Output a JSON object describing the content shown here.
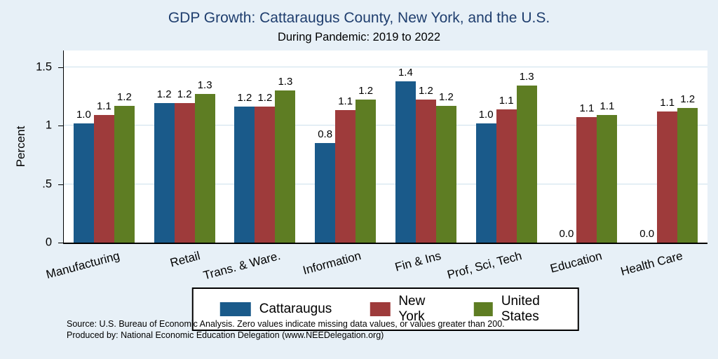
{
  "title": "GDP Growth: Cattaraugus County, New York, and the U.S.",
  "subtitle": "During Pandemic: 2019 to 2022",
  "ylabel": "Percent",
  "source": {
    "line1": "Source: U.S. Bureau of Economic Analysis. Zero values indicate missing data values, or values greater than 200.",
    "line2": "Produced by: National Economic Education Delegation (www.NEEDelegation.org)"
  },
  "style": {
    "background": "#E7F0F7",
    "plot_background": "#FFFFFF",
    "grid_color": "#CDE0EC",
    "title_color": "#1F3E6E"
  },
  "chart_data": {
    "type": "bar",
    "title": "GDP Growth: Cattaraugus County, New York, and the U.S.",
    "subtitle": "During Pandemic: 2019 to 2022",
    "xlabel": "",
    "ylabel": "Percent",
    "ylim": [
      0,
      1.65
    ],
    "yticks": [
      0,
      0.5,
      1,
      1.5
    ],
    "ytick_labels": [
      "0",
      ".5",
      "1",
      "1.5"
    ],
    "grid": true,
    "legend_position": "bottom",
    "categories": [
      "Manufacturing",
      "Retail",
      "Trans. & Ware.",
      "Information",
      "Fin & Ins",
      "Prof, Sci, Tech",
      "Education",
      "Health Care"
    ],
    "series": [
      {
        "name": "Cattaraugus",
        "color": "#1A5A8A",
        "values": [
          1.02,
          1.19,
          1.16,
          0.85,
          1.38,
          1.02,
          0.0,
          0.0
        ],
        "labels": [
          "1.0",
          "1.2",
          "1.2",
          "0.8",
          "1.4",
          "1.0",
          "0.0",
          "0.0"
        ]
      },
      {
        "name": "New York",
        "color": "#9E3B3B",
        "values": [
          1.09,
          1.19,
          1.16,
          1.13,
          1.22,
          1.14,
          1.07,
          1.12
        ],
        "labels": [
          "1.1",
          "1.2",
          "1.2",
          "1.1",
          "1.2",
          "1.1",
          "1.1",
          "1.1"
        ]
      },
      {
        "name": "United States",
        "color": "#5E7D23",
        "values": [
          1.17,
          1.27,
          1.3,
          1.22,
          1.17,
          1.34,
          1.09,
          1.15
        ],
        "labels": [
          "1.2",
          "1.3",
          "1.3",
          "1.2",
          "1.2",
          "1.3",
          "1.1",
          "1.2"
        ]
      }
    ]
  }
}
